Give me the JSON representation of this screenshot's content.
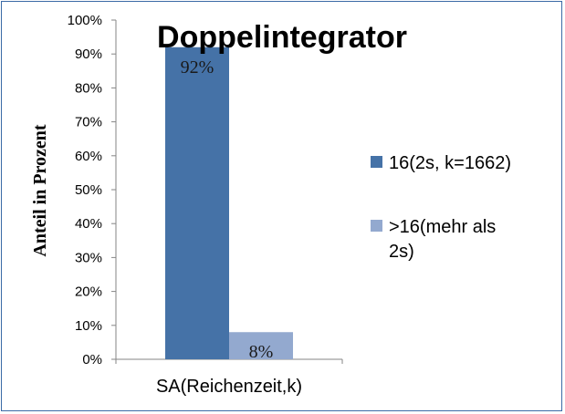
{
  "chart_data": {
    "type": "bar",
    "title": "Doppelintegrator",
    "ylabel": "Anteil in Prozent",
    "xlabel": "",
    "categories": [
      "SA(Reichenzeit,k)"
    ],
    "ylim": [
      0,
      100
    ],
    "yticks": [
      "0%",
      "10%",
      "20%",
      "30%",
      "40%",
      "50%",
      "60%",
      "70%",
      "80%",
      "90%",
      "100%"
    ],
    "series": [
      {
        "name": "16(2s, k=1662)",
        "values": [
          92
        ],
        "label": "92%",
        "color": "#4572a7"
      },
      {
        "name": ">16(mehr als 2s)",
        "values": [
          8
        ],
        "label": "8%",
        "color": "#93a9cf"
      }
    ],
    "legend_position": "right",
    "grid": false
  }
}
